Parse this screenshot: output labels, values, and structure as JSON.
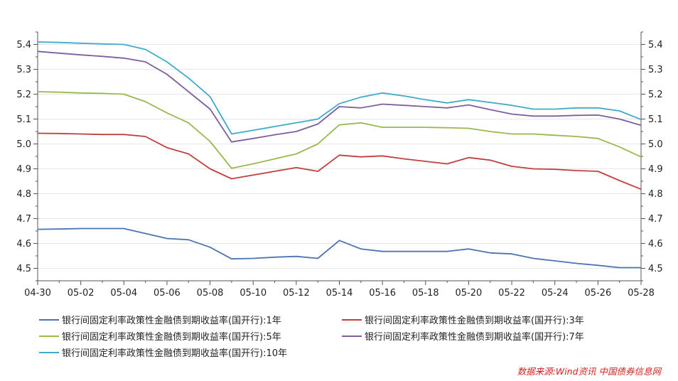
{
  "chart_data": {
    "type": "line",
    "x": [
      "04-30",
      "05-01",
      "05-02",
      "05-03",
      "05-04",
      "05-05",
      "05-06",
      "05-07",
      "05-08",
      "05-09",
      "05-10",
      "05-11",
      "05-12",
      "05-13",
      "05-14",
      "05-15",
      "05-16",
      "05-17",
      "05-18",
      "05-19",
      "05-20",
      "05-21",
      "05-22",
      "05-23",
      "05-24",
      "05-25",
      "05-26",
      "05-27",
      "05-28"
    ],
    "x_tick_labels": [
      "04-30",
      "05-02",
      "05-04",
      "05-06",
      "05-08",
      "05-10",
      "05-12",
      "05-14",
      "05-16",
      "05-18",
      "05-20",
      "05-22",
      "05-24",
      "05-26",
      "05-28"
    ],
    "ylim": [
      4.45,
      5.45
    ],
    "y_ticks": [
      "4.5",
      "4.6",
      "4.7",
      "4.8",
      "4.9",
      "5.0",
      "5.1",
      "5.2",
      "5.3",
      "5.4"
    ],
    "grid": true,
    "legend_position": "bottom",
    "series": [
      {
        "name": "银行间固定利率政策性金融债到期收益率(国开行):1年",
        "color": "#4a74b2",
        "values": [
          4.657,
          4.658,
          4.66,
          4.66,
          4.66,
          4.64,
          4.62,
          4.615,
          4.585,
          4.538,
          4.54,
          4.545,
          4.548,
          4.54,
          4.612,
          4.578,
          4.568,
          4.568,
          4.568,
          4.568,
          4.578,
          4.562,
          4.558,
          4.54,
          4.53,
          4.52,
          4.512,
          4.503,
          4.503
        ]
      },
      {
        "name": "银行间固定利率政策性金融债到期收益率(国开行):3年",
        "color": "#c0403e",
        "values": [
          5.043,
          5.042,
          5.04,
          5.038,
          5.038,
          5.03,
          4.985,
          4.96,
          4.9,
          4.86,
          4.875,
          4.89,
          4.905,
          4.89,
          4.955,
          4.948,
          4.952,
          4.94,
          4.93,
          4.92,
          4.945,
          4.935,
          4.91,
          4.9,
          4.898,
          4.893,
          4.89,
          4.853,
          4.818
        ]
      },
      {
        "name": "银行间固定利率政策性金融债到期收益率(国开行):5年",
        "color": "#99b94e",
        "values": [
          5.21,
          5.208,
          5.205,
          5.203,
          5.2,
          5.17,
          5.125,
          5.085,
          5.01,
          4.902,
          4.92,
          4.94,
          4.96,
          5.0,
          5.077,
          5.085,
          5.067,
          5.067,
          5.067,
          5.065,
          5.063,
          5.05,
          5.04,
          5.04,
          5.035,
          5.03,
          5.022,
          4.988,
          4.948
        ]
      },
      {
        "name": "银行间固定利率政策性金融债到期收益率(国开行):7年",
        "color": "#7d5fa0",
        "values": [
          5.372,
          5.365,
          5.358,
          5.352,
          5.345,
          5.33,
          5.28,
          5.21,
          5.14,
          5.008,
          5.022,
          5.037,
          5.05,
          5.08,
          5.15,
          5.145,
          5.16,
          5.155,
          5.15,
          5.145,
          5.157,
          5.138,
          5.12,
          5.112,
          5.112,
          5.115,
          5.116,
          5.1,
          5.075
        ]
      },
      {
        "name": "银行间固定利率政策性金融债到期收益率(国开行):10年",
        "color": "#3fabc9",
        "values": [
          5.41,
          5.408,
          5.405,
          5.402,
          5.4,
          5.38,
          5.33,
          5.265,
          5.19,
          5.04,
          5.055,
          5.07,
          5.085,
          5.1,
          5.162,
          5.188,
          5.205,
          5.193,
          5.178,
          5.165,
          5.178,
          5.167,
          5.155,
          5.14,
          5.14,
          5.145,
          5.145,
          5.133,
          5.098
        ]
      }
    ],
    "source": "数据来源:Wind资讯  中国债券信息网"
  }
}
